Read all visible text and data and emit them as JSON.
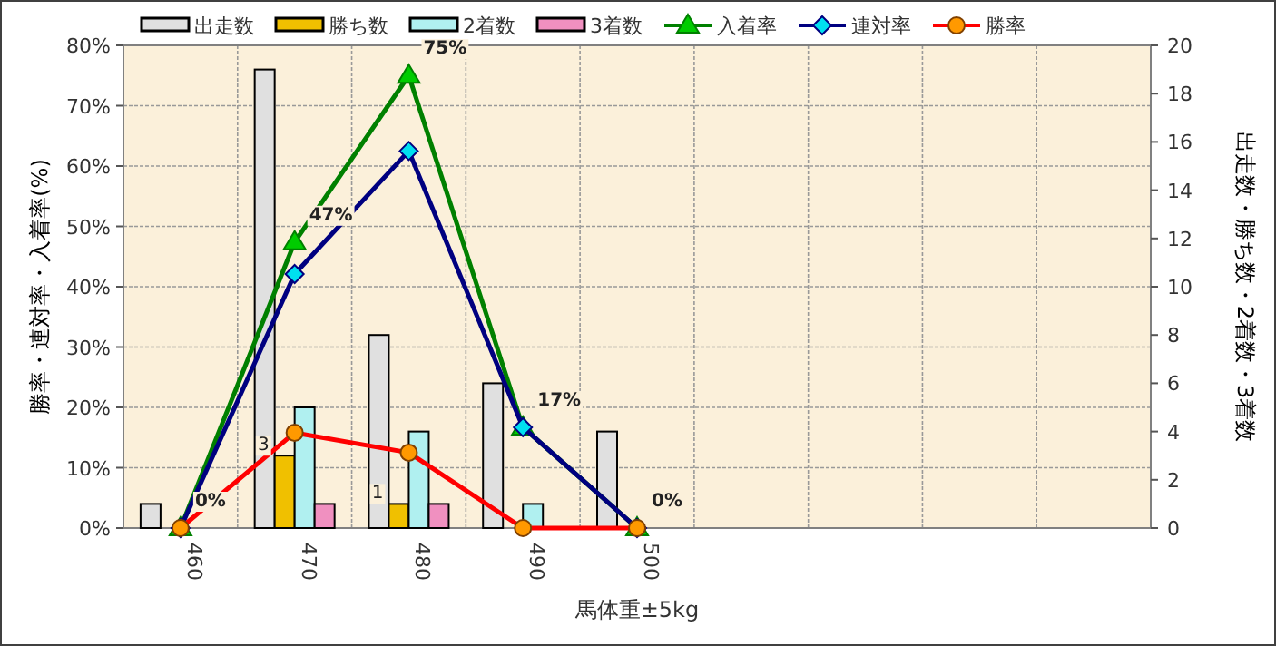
{
  "chart_data": {
    "type": "bar",
    "xlabel": "馬体重±5kg",
    "ylabel": "勝率・連対率・入着率(%)",
    "y2label": "出走数・勝ち数・2着数・3着数",
    "categories": [
      "460",
      "470",
      "480",
      "490",
      "500",
      null,
      null,
      null,
      null
    ],
    "series": [
      {
        "name": "出走数",
        "color": "#e0e0e0",
        "axis": "y2",
        "values": [
          1,
          19,
          8,
          6,
          4,
          null,
          null,
          null,
          null
        ]
      },
      {
        "name": "勝ち数",
        "color": "#f0c000",
        "axis": "y2",
        "values": [
          0,
          3,
          1,
          0,
          0,
          null,
          null,
          null,
          null
        ],
        "value_labels": [
          null,
          "3",
          "1",
          null,
          null,
          null,
          null,
          null,
          null
        ]
      },
      {
        "name": "2着数",
        "color": "#b0f0f0",
        "axis": "y2",
        "values": [
          0,
          5,
          4,
          1,
          0,
          null,
          null,
          null,
          null
        ]
      },
      {
        "name": "3着数",
        "color": "#f090c0",
        "axis": "y2",
        "values": [
          0,
          1,
          1,
          0,
          0,
          null,
          null,
          null,
          null
        ]
      },
      {
        "name": "入着率",
        "type": "line",
        "color": "#008000",
        "marker": "triangle",
        "values": [
          0,
          47.4,
          75,
          16.7,
          0,
          null,
          null,
          null,
          null
        ],
        "value_labels": [
          "0%",
          "47%",
          "75%",
          "17%",
          "0%",
          null,
          null,
          null,
          null
        ]
      },
      {
        "name": "連対率",
        "type": "line",
        "color": "#000080",
        "marker": "diamond",
        "values": [
          0,
          42.1,
          62.5,
          16.7,
          0,
          null,
          null,
          null,
          null
        ]
      },
      {
        "name": "勝率",
        "type": "line",
        "color": "#ff0000",
        "marker": "circle",
        "values": [
          0,
          15.8,
          12.5,
          0,
          0,
          null,
          null,
          null,
          null
        ]
      }
    ],
    "ylim": [
      0,
      80
    ],
    "yticks": [
      {
        "value": 0,
        "label": "0%"
      },
      {
        "value": 10,
        "label": "10%"
      },
      {
        "value": 20,
        "label": "20%"
      },
      {
        "value": 30,
        "label": "30%"
      },
      {
        "value": 40,
        "label": "40%"
      },
      {
        "value": 50,
        "label": "50%"
      },
      {
        "value": 60,
        "label": "60%"
      },
      {
        "value": 70,
        "label": "70%"
      },
      {
        "value": 80,
        "label": "80%"
      }
    ],
    "y2lim": [
      0,
      20
    ],
    "y2ticks": [
      0,
      2,
      4,
      6,
      8,
      10,
      12,
      14,
      16,
      18,
      20
    ],
    "grid": true,
    "legend": "top"
  }
}
